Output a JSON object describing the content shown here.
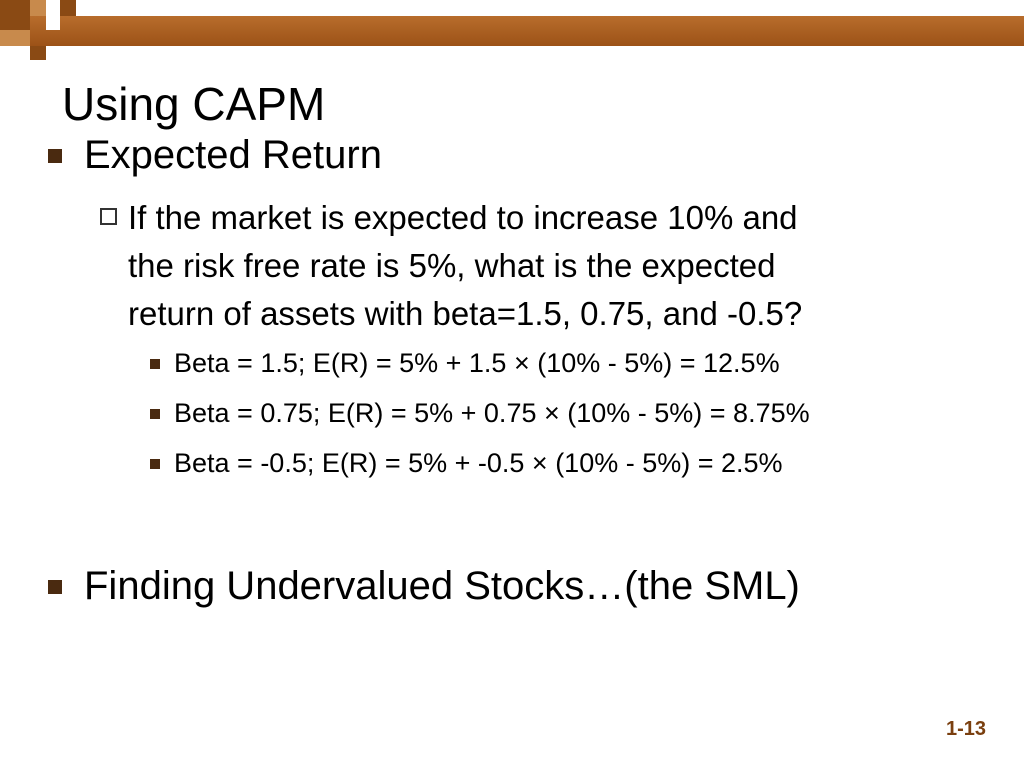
{
  "title": "Using CAPM",
  "bullets": [
    {
      "text": "Expected Return",
      "sub": {
        "lines": [
          "If the market is expected to increase 10% and",
          "the risk free rate is 5%, what is the expected",
          "return of assets with beta=1.5, 0.75, and -0.5?"
        ],
        "items": [
          "Beta = 1.5;  E(R) = 5% + 1.5 × (10% - 5%) = 12.5%",
          "Beta = 0.75;  E(R) = 5% + 0.75 × (10% - 5%) = 8.75%",
          "Beta = -0.5;  E(R) = 5% + -0.5 × (10% - 5%) = 2.5%"
        ]
      }
    },
    {
      "text": "Finding Undervalued Stocks…(the SML)"
    }
  ],
  "slide_number": "1-13",
  "colors": {
    "header_bar": "#a0561c",
    "bullet": "#4a2a10",
    "slide_number": "#7a3f0f"
  }
}
